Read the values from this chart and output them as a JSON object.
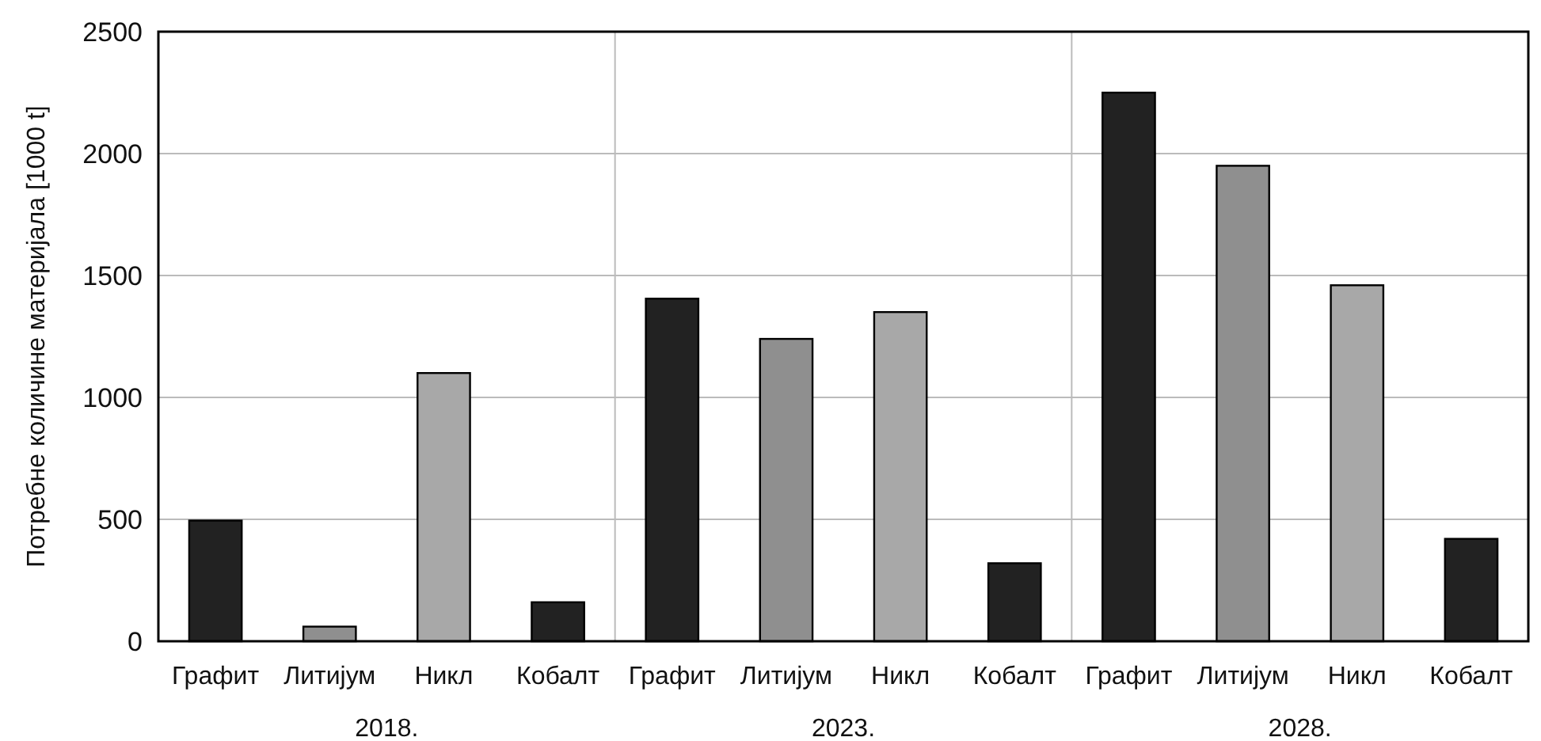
{
  "chart_data": {
    "type": "bar",
    "ylabel": "Потребне количине материјала [1000 t]",
    "categories": [
      "Графит",
      "Литијум",
      "Никл",
      "Кобалт",
      "Графит",
      "Литијум",
      "Никл",
      "Кобалт",
      "Графит",
      "Литијум",
      "Никл",
      "Кобалт"
    ],
    "values": [
      495,
      60,
      1100,
      160,
      1405,
      1240,
      1350,
      320,
      2250,
      1950,
      1460,
      420
    ],
    "colors": [
      "#222222",
      "#8f8f8f",
      "#a8a8a8",
      "#222222",
      "#222222",
      "#8f8f8f",
      "#a8a8a8",
      "#222222",
      "#222222",
      "#8f8f8f",
      "#a8a8a8",
      "#222222"
    ],
    "ylim": [
      0,
      2500
    ],
    "yticks": [
      0,
      500,
      1000,
      1500,
      2000,
      2500
    ],
    "grid": true,
    "annotations": [
      "2018.",
      "2023.",
      "2028."
    ]
  }
}
